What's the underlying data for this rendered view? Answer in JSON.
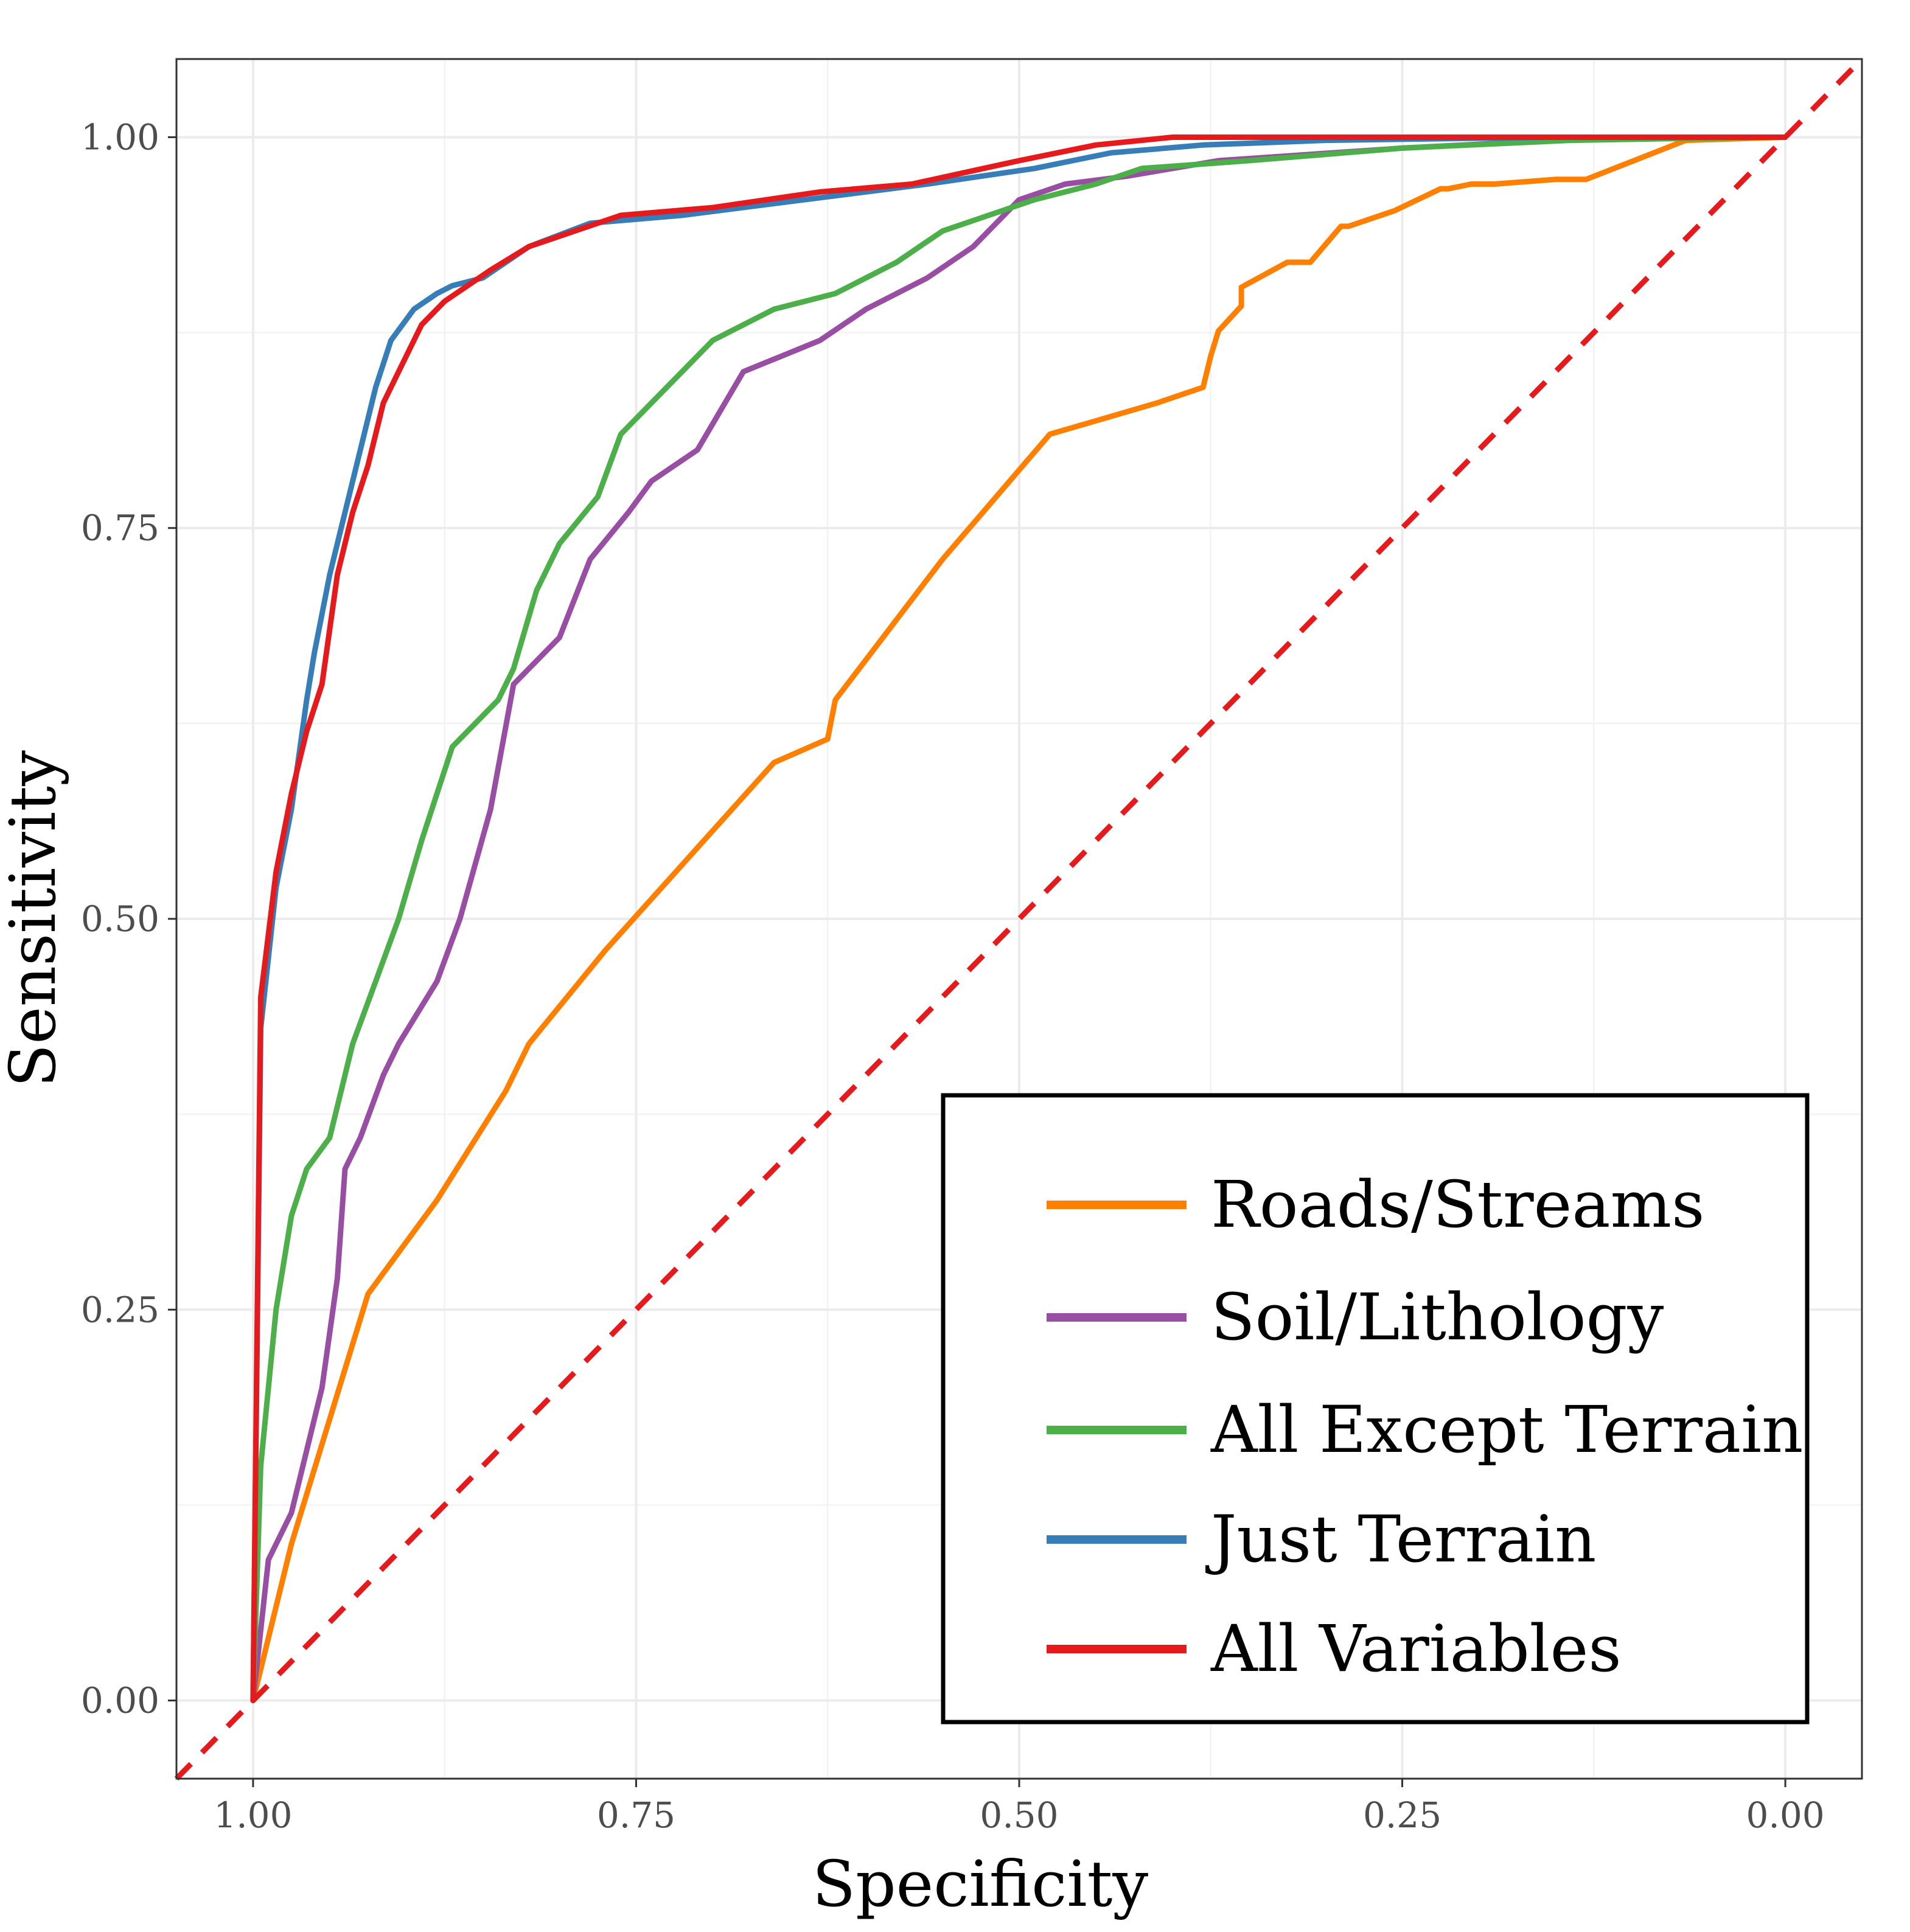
{
  "chart_data": {
    "type": "line",
    "title": "",
    "xlabel": "Specificity",
    "ylabel": "Sensitivity",
    "x_reversed": true,
    "xlim": [
      1.05,
      -0.05
    ],
    "ylim": [
      -0.05,
      1.05
    ],
    "x_ticks": [
      {
        "value": 1.0,
        "label": "1.00"
      },
      {
        "value": 0.75,
        "label": "0.75"
      },
      {
        "value": 0.5,
        "label": "0.50"
      },
      {
        "value": 0.25,
        "label": "0.25"
      },
      {
        "value": 0.0,
        "label": "0.00"
      }
    ],
    "y_ticks": [
      {
        "value": 0.0,
        "label": "0.00"
      },
      {
        "value": 0.25,
        "label": "0.25"
      },
      {
        "value": 0.5,
        "label": "0.50"
      },
      {
        "value": 0.75,
        "label": "0.75"
      },
      {
        "value": 1.0,
        "label": "1.00"
      }
    ],
    "grid": true,
    "legend_position": "bottom-right, inside plot",
    "reference_line": {
      "x": [
        1.05,
        -0.05
      ],
      "y": [
        -0.05,
        1.05
      ],
      "color": "#e41a1c",
      "style": "dashed"
    },
    "series": [
      {
        "name": "Roads/Streams",
        "color": "#ff7f00",
        "x": [
          1.0,
          0.975,
          0.925,
          0.88,
          0.835,
          0.82,
          0.77,
          0.715,
          0.66,
          0.625,
          0.62,
          0.55,
          0.48,
          0.41,
          0.38,
          0.375,
          0.37,
          0.355,
          0.355,
          0.325,
          0.31,
          0.29,
          0.285,
          0.255,
          0.225,
          0.22,
          0.205,
          0.19,
          0.15,
          0.13,
          0.065,
          0.0
        ],
        "y": [
          0.0,
          0.1,
          0.26,
          0.32,
          0.39,
          0.42,
          0.48,
          0.54,
          0.6,
          0.615,
          0.64,
          0.73,
          0.81,
          0.83,
          0.84,
          0.86,
          0.876,
          0.892,
          0.904,
          0.92,
          0.92,
          0.943,
          0.943,
          0.953,
          0.967,
          0.967,
          0.97,
          0.97,
          0.973,
          0.973,
          0.998,
          1.0
        ]
      },
      {
        "name": "Soil/Lithology",
        "color": "#984ea3",
        "x": [
          1.0,
          0.99,
          0.975,
          0.955,
          0.945,
          0.94,
          0.93,
          0.915,
          0.905,
          0.88,
          0.865,
          0.845,
          0.83,
          0.8,
          0.78,
          0.755,
          0.74,
          0.71,
          0.68,
          0.63,
          0.6,
          0.56,
          0.53,
          0.5,
          0.47,
          0.43,
          0.37,
          0.25,
          0.15,
          0.02
        ],
        "y": [
          0.0,
          0.09,
          0.12,
          0.2,
          0.27,
          0.34,
          0.36,
          0.4,
          0.42,
          0.46,
          0.5,
          0.57,
          0.65,
          0.68,
          0.73,
          0.76,
          0.78,
          0.8,
          0.85,
          0.87,
          0.89,
          0.91,
          0.93,
          0.96,
          0.97,
          0.975,
          0.985,
          0.993,
          0.998,
          1.0
        ]
      },
      {
        "name": "All Except Terrain",
        "color": "#4daf4a",
        "x": [
          1.0,
          0.995,
          0.985,
          0.975,
          0.965,
          0.95,
          0.935,
          0.92,
          0.905,
          0.89,
          0.87,
          0.84,
          0.83,
          0.815,
          0.8,
          0.775,
          0.76,
          0.74,
          0.72,
          0.7,
          0.66,
          0.62,
          0.58,
          0.55,
          0.52,
          0.49,
          0.45,
          0.42,
          0.35,
          0.25,
          0.14,
          0.02
        ],
        "y": [
          0.0,
          0.15,
          0.25,
          0.31,
          0.34,
          0.36,
          0.42,
          0.46,
          0.5,
          0.55,
          0.61,
          0.64,
          0.66,
          0.71,
          0.74,
          0.77,
          0.81,
          0.83,
          0.85,
          0.87,
          0.89,
          0.9,
          0.92,
          0.94,
          0.95,
          0.96,
          0.97,
          0.98,
          0.985,
          0.993,
          0.998,
          1.0
        ]
      },
      {
        "name": "Just Terrain",
        "color": "#377eb8",
        "x": [
          1.0,
          0.995,
          0.985,
          0.975,
          0.965,
          0.96,
          0.95,
          0.94,
          0.93,
          0.92,
          0.91,
          0.895,
          0.88,
          0.87,
          0.85,
          0.82,
          0.78,
          0.72,
          0.64,
          0.56,
          0.49,
          0.44,
          0.38,
          0.3,
          0.15,
          0.0
        ],
        "y": [
          0.0,
          0.43,
          0.52,
          0.57,
          0.64,
          0.67,
          0.72,
          0.76,
          0.8,
          0.84,
          0.87,
          0.89,
          0.9,
          0.905,
          0.91,
          0.93,
          0.945,
          0.95,
          0.96,
          0.97,
          0.98,
          0.99,
          0.995,
          0.998,
          1.0,
          1.0
        ]
      },
      {
        "name": "All Variables",
        "color": "#e41a1c",
        "x": [
          1.0,
          0.995,
          0.985,
          0.975,
          0.965,
          0.955,
          0.945,
          0.935,
          0.925,
          0.915,
          0.905,
          0.89,
          0.875,
          0.86,
          0.845,
          0.82,
          0.79,
          0.76,
          0.7,
          0.63,
          0.57,
          0.5,
          0.45,
          0.4,
          0.3,
          0.15,
          0.0
        ],
        "y": [
          0.0,
          0.45,
          0.53,
          0.58,
          0.62,
          0.65,
          0.72,
          0.76,
          0.79,
          0.83,
          0.85,
          0.88,
          0.895,
          0.905,
          0.915,
          0.93,
          0.94,
          0.95,
          0.955,
          0.965,
          0.97,
          0.985,
          0.995,
          1.0,
          1.0,
          1.0,
          1.0
        ]
      }
    ]
  }
}
